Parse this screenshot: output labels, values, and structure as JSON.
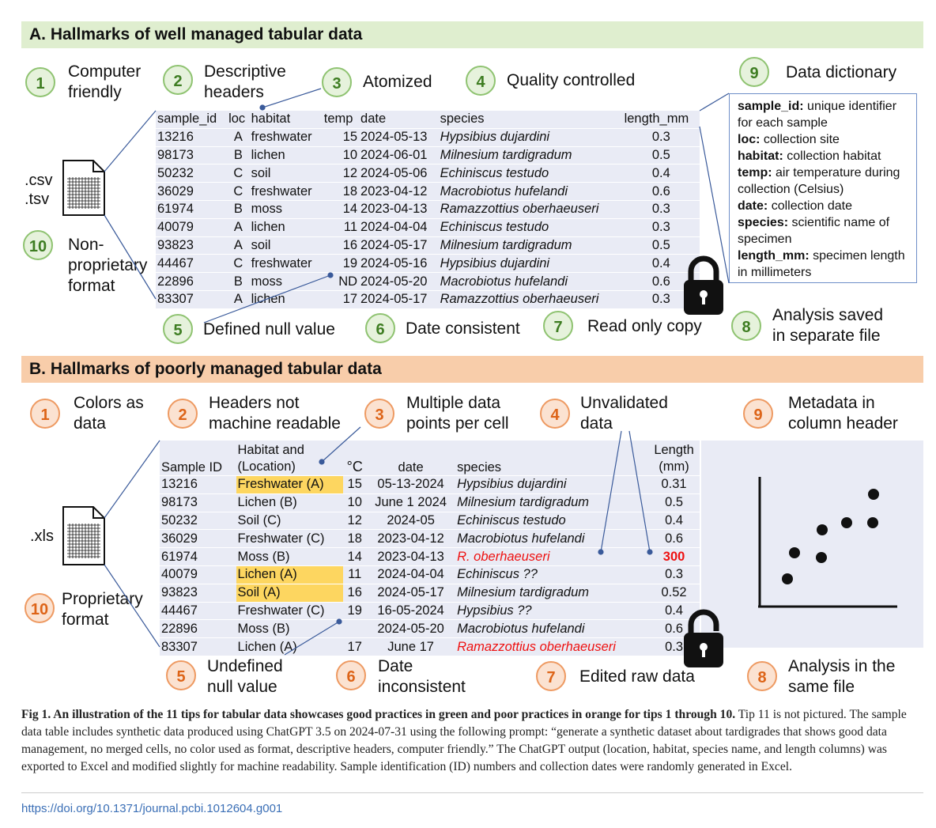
{
  "section_a": {
    "title": "A. Hallmarks of well managed tabular data",
    "tips": [
      {
        "num": "1",
        "label": "Computer\nfriendly"
      },
      {
        "num": "2",
        "label": "Descriptive\nheaders"
      },
      {
        "num": "3",
        "label": "Atomized"
      },
      {
        "num": "4",
        "label": "Quality controlled"
      },
      {
        "num": "5",
        "label": "Defined null value"
      },
      {
        "num": "6",
        "label": "Date consistent"
      },
      {
        "num": "7",
        "label": "Read only copy"
      },
      {
        "num": "8",
        "label": "Analysis saved\nin separate file"
      },
      {
        "num": "9",
        "label": "Data dictionary"
      },
      {
        "num": "10",
        "label": "Non-\nproprietary\nformat"
      }
    ],
    "file_ext": ".csv\n.tsv",
    "table": {
      "headers": [
        "sample_id",
        "loc",
        "habitat",
        "temp",
        "date",
        "species",
        "length_mm"
      ],
      "rows": [
        [
          "13216",
          "A",
          "freshwater",
          "15",
          "2024-05-13",
          "Hypsibius dujardini",
          "0.3"
        ],
        [
          "98173",
          "B",
          "lichen",
          "10",
          "2024-06-01",
          "Milnesium tardigradum",
          "0.5"
        ],
        [
          "50232",
          "C",
          "soil",
          "12",
          "2024-05-06",
          "Echiniscus testudo",
          "0.4"
        ],
        [
          "36029",
          "C",
          "freshwater",
          "18",
          "2023-04-12",
          "Macrobiotus hufelandi",
          "0.6"
        ],
        [
          "61974",
          "B",
          "moss",
          "14",
          "2023-04-13",
          "Ramazzottius oberhaeuseri",
          "0.3"
        ],
        [
          "40079",
          "A",
          "lichen",
          "11",
          "2024-04-04",
          "Echiniscus testudo",
          "0.3"
        ],
        [
          "93823",
          "A",
          "soil",
          "16",
          "2024-05-17",
          "Milnesium tardigradum",
          "0.5"
        ],
        [
          "44467",
          "C",
          "freshwater",
          "19",
          "2024-05-16",
          "Hypsibius dujardini",
          "0.4"
        ],
        [
          "22896",
          "B",
          "moss",
          "ND",
          "2024-05-20",
          "Macrobiotus hufelandi",
          "0.6"
        ],
        [
          "83307",
          "A",
          "lichen",
          "17",
          "2024-05-17",
          "Ramazzottius oberhaeuseri",
          "0.3"
        ]
      ]
    },
    "dictionary": [
      {
        "key": "sample_id:",
        "desc": "unique identifier for each sample"
      },
      {
        "key": "loc:",
        "desc": "collection site"
      },
      {
        "key": "habitat:",
        "desc": "collection habitat"
      },
      {
        "key": "temp:",
        "desc": "air temperature during collection (Celsius)"
      },
      {
        "key": "date:",
        "desc": "collection date"
      },
      {
        "key": "species:",
        "desc": "scientific name of specimen"
      },
      {
        "key": "length_mm:",
        "desc": "specimen length in millimeters"
      }
    ]
  },
  "section_b": {
    "title": "B. Hallmarks of poorly managed tabular data",
    "tips": [
      {
        "num": "1",
        "label": "Colors as\ndata"
      },
      {
        "num": "2",
        "label": "Headers not\nmachine readable"
      },
      {
        "num": "3",
        "label": "Multiple data\npoints per cell"
      },
      {
        "num": "4",
        "label": "Unvalidated\ndata"
      },
      {
        "num": "5",
        "label": "Undefined\nnull value"
      },
      {
        "num": "6",
        "label": "Date\ninconsistent"
      },
      {
        "num": "7",
        "label": "Edited raw data"
      },
      {
        "num": "8",
        "label": "Analysis in the\nsame file"
      },
      {
        "num": "9",
        "label": "Metadata in\ncolumn header"
      },
      {
        "num": "10",
        "label": "Proprietary\nformat"
      }
    ],
    "file_ext": ".xls",
    "table": {
      "headers": [
        "Sample ID",
        "Habitat and\n(Location)",
        "°C",
        "date",
        "species",
        "Length\n(mm)"
      ],
      "rows": [
        [
          "13216",
          "Freshwater (A)",
          "15",
          "05-13-2024",
          "Hypsibius dujardini",
          "0.31"
        ],
        [
          "98173",
          "Lichen (B)",
          "10",
          "June 1 2024",
          "Milnesium tardigradum",
          "0.5"
        ],
        [
          "50232",
          "Soil (C)",
          "12",
          "2024-05",
          "Echiniscus testudo",
          "0.4"
        ],
        [
          "36029",
          "Freshwater (C)",
          "18",
          "2023-04-12",
          "Macrobiotus hufelandi",
          "0.6"
        ],
        [
          "61974",
          "Moss (B)",
          "14",
          "2023-04-13",
          "R. oberhaeuseri",
          "300"
        ],
        [
          "40079",
          "Lichen (A)",
          "11",
          "2024-04-04",
          "Echiniscus ??",
          "0.3"
        ],
        [
          "93823",
          "Soil (A)",
          "16",
          "2024-05-17",
          "Milnesium tardigradum",
          "0.52"
        ],
        [
          "44467",
          "Freshwater (C)",
          "19",
          "16-05-2024",
          "Hypsibius ??",
          "0.4"
        ],
        [
          "22896",
          "Moss (B)",
          "",
          "2024-05-20",
          "Macrobiotus hufelandi",
          "0.6"
        ],
        [
          "83307",
          "Lichen (A)",
          "17",
          "June 17",
          "Ramazzottius oberhaeuseri",
          "0.3"
        ]
      ]
    }
  },
  "caption": {
    "bold": "Fig 1. An illustration of the 11 tips for tabular data showcases good practices in green and poor practices in orange for tips 1 through 10.",
    "text": " Tip 11 is not pictured. The sample data table includes synthetic data produced using ChatGPT 3.5 on 2024-07-31 using the following prompt: “generate a synthetic dataset about tardigrades that shows good data management, no merged cells, no color used as format, descriptive headers, computer friendly.” The ChatGPT output (location, habitat, species name, and length columns) was exported to Excel and modified slightly for machine readability. Sample identification (ID) numbers and collection dates were randomly generated in Excel."
  },
  "doi": "https://doi.org/10.1371/journal.pcbi.1012604.g001",
  "colors": {
    "good": "#3e7d22",
    "good_fill": "#e6f2dc",
    "poor": "#dd6418",
    "poor_fill": "#fbe2d1",
    "highlight": "#fdd660",
    "error": "#ee1111"
  }
}
